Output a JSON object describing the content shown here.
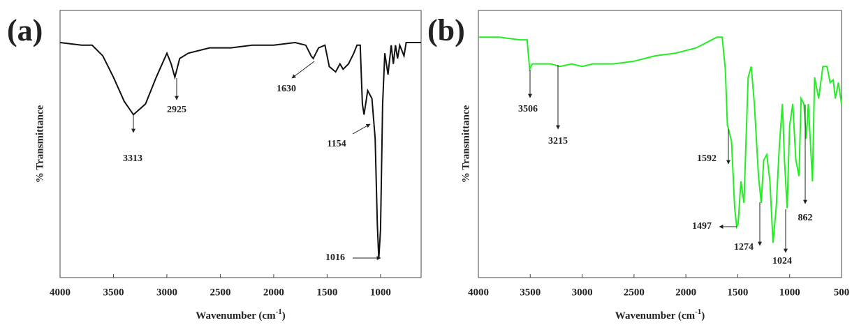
{
  "chart_data": [
    {
      "type": "line",
      "panel_label": "(a)",
      "ylabel": "% Transmittance",
      "xlabel": "Wavenumber (cm",
      "xlabel_sup": "-1",
      "xlabel_end": ")",
      "xlim": [
        4000,
        620
      ],
      "ylim": [
        0,
        100
      ],
      "xticks": [
        4000,
        3500,
        3000,
        2500,
        2000,
        1500,
        1000
      ],
      "color": "#111111",
      "x": [
        4000,
        3800,
        3700,
        3600,
        3500,
        3400,
        3313,
        3200,
        3100,
        3000,
        2960,
        2925,
        2880,
        2800,
        2600,
        2400,
        2200,
        2000,
        1800,
        1700,
        1650,
        1630,
        1580,
        1520,
        1480,
        1420,
        1380,
        1350,
        1300,
        1250,
        1220,
        1190,
        1170,
        1154,
        1120,
        1080,
        1050,
        1030,
        1016,
        1000,
        980,
        960,
        930,
        900,
        880,
        860,
        840,
        820,
        780,
        760,
        700,
        620
      ],
      "values": [
        88,
        87,
        87,
        83,
        75,
        66,
        61,
        65,
        75,
        84,
        80,
        75,
        82,
        84,
        86,
        86,
        87,
        87,
        88,
        87,
        83,
        82,
        86,
        87,
        79,
        77,
        80,
        78,
        80,
        84,
        87,
        87,
        65,
        61,
        70,
        67,
        52,
        20,
        7,
        18,
        65,
        84,
        76,
        87,
        80,
        87,
        82,
        87,
        83,
        88,
        88,
        88
      ],
      "annotations": [
        "3313",
        "2925",
        "1630",
        "1154",
        "1016"
      ]
    },
    {
      "type": "line",
      "panel_label": "(b)",
      "ylabel": "% Transmittance",
      "xlabel": "Wavenumber (cm",
      "xlabel_sup": "-1",
      "xlabel_end": ")",
      "xlim": [
        4000,
        500
      ],
      "ylim": [
        0,
        100
      ],
      "xticks": [
        4000,
        3500,
        3000,
        2500,
        2000,
        1500,
        1000,
        500
      ],
      "color": "#22ee22",
      "x": [
        4000,
        3800,
        3600,
        3530,
        3506,
        3480,
        3400,
        3300,
        3215,
        3100,
        3000,
        2900,
        2700,
        2500,
        2300,
        2100,
        1900,
        1700,
        1650,
        1620,
        1600,
        1592,
        1560,
        1530,
        1510,
        1497,
        1470,
        1440,
        1400,
        1370,
        1340,
        1300,
        1274,
        1250,
        1220,
        1190,
        1160,
        1130,
        1100,
        1070,
        1050,
        1024,
        1000,
        970,
        940,
        910,
        890,
        862,
        840,
        820,
        780,
        760,
        720,
        680,
        640,
        610,
        580,
        560,
        530,
        500
      ],
      "values": [
        90,
        90,
        89,
        89,
        78,
        80,
        80,
        80,
        79,
        80,
        79,
        80,
        80,
        81,
        83,
        84,
        86,
        90,
        90,
        78,
        57,
        56,
        51,
        26,
        19,
        20,
        36,
        28,
        75,
        79,
        65,
        38,
        28,
        44,
        46,
        36,
        13,
        26,
        49,
        65,
        44,
        26,
        57,
        65,
        44,
        38,
        67,
        65,
        52,
        65,
        36,
        75,
        67,
        79,
        79,
        73,
        74,
        67,
        73,
        65
      ],
      "annotations": [
        "3506",
        "3215",
        "1592",
        "1497",
        "1274",
        "1024",
        "862"
      ]
    }
  ]
}
